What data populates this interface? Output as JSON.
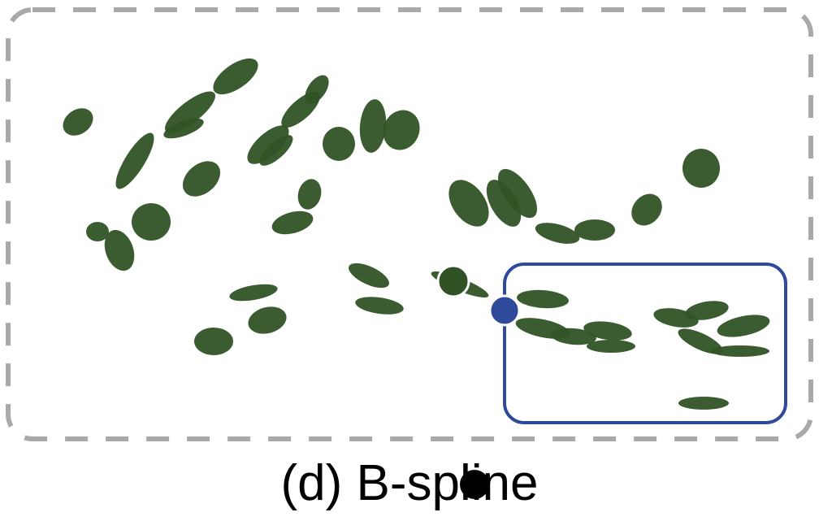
{
  "caption": "(d) B-spline",
  "colors": {
    "leaf": "#2f5325",
    "dash": "#a9a9a9",
    "selection": "#2f4a9b",
    "control_point": "#2f4a9b",
    "anchor_point": "#2f5325",
    "cursor": "#000000"
  }
}
